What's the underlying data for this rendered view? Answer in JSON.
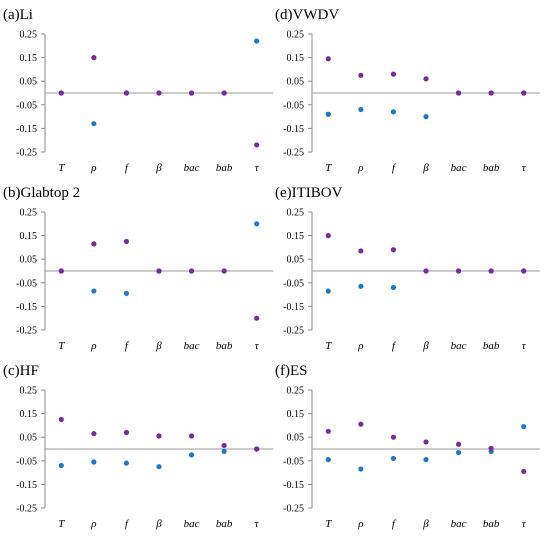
{
  "colors": {
    "blue": "#1f77c9",
    "purple": "#7a2a99",
    "axis": "#8c8c8c"
  },
  "chart_data": [
    {
      "type": "scatter",
      "title": "(a)Li",
      "categories": [
        "T",
        "ρ",
        "f",
        "β",
        "bac",
        "bab",
        "τ"
      ],
      "ylim": [
        -0.25,
        0.25
      ],
      "yticks": [
        "0.25",
        "0.15",
        "0.05",
        "-0.05",
        "-0.15",
        "-0.25"
      ],
      "grid": false,
      "series": [
        {
          "color": "blue",
          "values": [
            0,
            -0.13,
            0,
            0,
            0,
            0,
            0.22
          ]
        },
        {
          "color": "purple",
          "values": [
            0,
            0.15,
            0,
            0,
            0,
            0,
            -0.22
          ]
        }
      ]
    },
    {
      "type": "scatter",
      "title": "(d)VWDV",
      "categories": [
        "T",
        "ρ",
        "f",
        "β",
        "bac",
        "bab",
        "τ"
      ],
      "ylim": [
        -0.25,
        0.25
      ],
      "yticks": [
        "0.25",
        "0.15",
        "0.05",
        "-0.05",
        "-0.15",
        "-0.25"
      ],
      "grid": false,
      "series": [
        {
          "color": "blue",
          "values": [
            -0.09,
            -0.07,
            -0.08,
            -0.1,
            0,
            0,
            0
          ]
        },
        {
          "color": "purple",
          "values": [
            0.145,
            0.075,
            0.08,
            0.06,
            0,
            0,
            0
          ]
        }
      ]
    },
    {
      "type": "scatter",
      "title": "(b)Glabtop 2",
      "categories": [
        "T",
        "ρ",
        "f",
        "β",
        "bac",
        "bab",
        "τ"
      ],
      "ylim": [
        -0.25,
        0.25
      ],
      "yticks": [
        "0.25",
        "0.15",
        "0.05",
        "-0.05",
        "-0.15",
        "-0.25"
      ],
      "grid": false,
      "series": [
        {
          "color": "blue",
          "values": [
            0,
            -0.085,
            -0.095,
            0,
            0,
            0,
            0.2
          ]
        },
        {
          "color": "purple",
          "values": [
            0,
            0.115,
            0.125,
            0,
            0,
            0,
            -0.2
          ]
        }
      ]
    },
    {
      "type": "scatter",
      "title": "(e)ITIBOV",
      "categories": [
        "T",
        "ρ",
        "f",
        "β",
        "bac",
        "bab",
        "τ"
      ],
      "ylim": [
        -0.25,
        0.25
      ],
      "yticks": [
        "0.25",
        "0.15",
        "0.05",
        "-0.05",
        "-0.15",
        "-0.25"
      ],
      "grid": false,
      "series": [
        {
          "color": "blue",
          "values": [
            -0.085,
            -0.065,
            -0.07,
            0,
            0,
            0,
            0
          ]
        },
        {
          "color": "purple",
          "values": [
            0.15,
            0.085,
            0.09,
            0,
            0,
            0,
            0
          ]
        }
      ]
    },
    {
      "type": "scatter",
      "title": "(c)HF",
      "categories": [
        "T",
        "ρ",
        "f",
        "β",
        "bac",
        "bab",
        "τ"
      ],
      "ylim": [
        -0.25,
        0.25
      ],
      "yticks": [
        "0.25",
        "0.15",
        "0.05",
        "-0.05",
        "-0.15",
        "-0.25"
      ],
      "grid": false,
      "series": [
        {
          "color": "blue",
          "values": [
            -0.07,
            -0.055,
            -0.06,
            -0.075,
            -0.025,
            -0.01,
            0
          ]
        },
        {
          "color": "purple",
          "values": [
            0.125,
            0.065,
            0.07,
            0.055,
            0.055,
            0.015,
            0
          ]
        }
      ]
    },
    {
      "type": "scatter",
      "title": "(f)ES",
      "categories": [
        "T",
        "ρ",
        "f",
        "β",
        "bac",
        "bab",
        "τ"
      ],
      "ylim": [
        -0.25,
        0.25
      ],
      "yticks": [
        "0.25",
        "0.15",
        "0.05",
        "-0.05",
        "-0.15",
        "-0.25"
      ],
      "grid": false,
      "series": [
        {
          "color": "blue",
          "values": [
            -0.045,
            -0.085,
            -0.04,
            -0.045,
            -0.015,
            -0.01,
            0.095
          ]
        },
        {
          "color": "purple",
          "values": [
            0.075,
            0.105,
            0.05,
            0.03,
            0.02,
            0.003,
            -0.095
          ]
        }
      ]
    }
  ]
}
